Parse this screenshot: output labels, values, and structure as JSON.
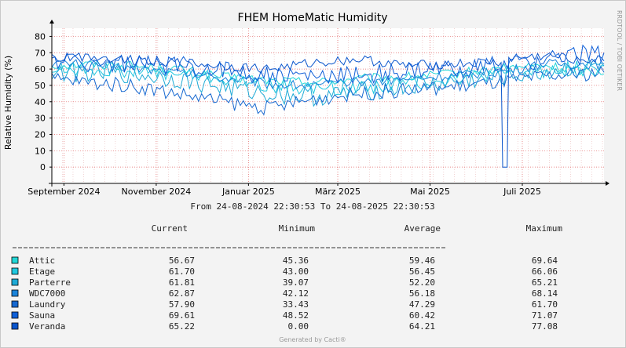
{
  "chart_data": {
    "type": "line",
    "title": "FHEM HomeMatic Humidity",
    "ylabel": "Relative Humidity (%)",
    "xlabel": "",
    "ylim": [
      -10,
      85
    ],
    "yticks": [
      0,
      10,
      20,
      30,
      40,
      50,
      60,
      70,
      80
    ],
    "x_range": [
      "2024-08-24",
      "2025-08-24"
    ],
    "xticks": [
      {
        "date": "2024-09-01",
        "label": "September 2024"
      },
      {
        "date": "2024-11-01",
        "label": "November 2024"
      },
      {
        "date": "2025-01-01",
        "label": "Januar 2025"
      },
      {
        "date": "2025-03-01",
        "label": "März 2025"
      },
      {
        "date": "2025-05-01",
        "label": "Mai 2025"
      },
      {
        "date": "2025-07-01",
        "label": "Juli 2025"
      }
    ],
    "grid": true,
    "watermark": "RRDTOOL / TOBI OETIKER",
    "time_range_text": "From 24-08-2024 22:30:53 To 24-08-2025 22:30:53",
    "legend_headers": [
      "Current",
      "Minimum",
      "Average",
      "Maximum"
    ],
    "series": [
      {
        "name": "Attic",
        "color": "#22d7d7",
        "current": "56.67",
        "minimum": "45.36",
        "average": "59.46",
        "maximum": "69.64",
        "x": [
          "2024-08-24",
          "2024-09-15",
          "2024-10-15",
          "2024-11-15",
          "2024-12-15",
          "2025-01-15",
          "2025-02-15",
          "2025-03-15",
          "2025-04-15",
          "2025-05-15",
          "2025-06-15",
          "2025-07-15",
          "2025-08-24"
        ],
        "values": [
          62,
          63,
          62,
          60,
          55,
          53,
          52,
          54,
          55,
          57,
          60,
          62,
          57
        ]
      },
      {
        "name": "Etage",
        "color": "#20c8e0",
        "current": "61.70",
        "minimum": "43.00",
        "average": "56.45",
        "maximum": "66.06",
        "x": [
          "2024-08-24",
          "2024-09-15",
          "2024-10-15",
          "2024-11-15",
          "2024-12-15",
          "2025-01-15",
          "2025-02-15",
          "2025-03-15",
          "2025-04-15",
          "2025-05-15",
          "2025-06-15",
          "2025-07-15",
          "2025-08-24"
        ],
        "values": [
          60,
          60,
          59,
          57,
          54,
          50,
          48,
          49,
          51,
          54,
          57,
          59,
          62
        ]
      },
      {
        "name": "Parterre",
        "color": "#1eaad6",
        "current": "61.81",
        "minimum": "39.07",
        "average": "52.20",
        "maximum": "65.21",
        "x": [
          "2024-08-24",
          "2024-09-15",
          "2024-10-15",
          "2024-11-15",
          "2024-12-15",
          "2025-01-15",
          "2025-02-15",
          "2025-03-15",
          "2025-04-15",
          "2025-05-15",
          "2025-06-15",
          "2025-07-15",
          "2025-08-24"
        ],
        "values": [
          58,
          58,
          57,
          54,
          49,
          45,
          43,
          46,
          49,
          52,
          55,
          58,
          62
        ]
      },
      {
        "name": "WDC7000",
        "color": "#1a84da",
        "current": "62.87",
        "minimum": "42.12",
        "average": "56.18",
        "maximum": "68.14",
        "x": [
          "2024-08-24",
          "2024-09-15",
          "2024-10-15",
          "2024-11-15",
          "2024-12-15",
          "2025-01-15",
          "2025-02-15",
          "2025-03-15",
          "2025-04-15",
          "2025-05-15",
          "2025-06-15",
          "2025-07-15",
          "2025-08-24"
        ],
        "values": [
          64,
          63,
          61,
          58,
          55,
          51,
          50,
          52,
          54,
          56,
          58,
          63,
          63
        ]
      },
      {
        "name": "Laundry",
        "color": "#1668d0",
        "current": "57.90",
        "minimum": "33.43",
        "average": "47.29",
        "maximum": "61.70",
        "x": [
          "2024-08-24",
          "2024-09-15",
          "2024-10-15",
          "2024-11-15",
          "2024-12-15",
          "2025-01-15",
          "2025-02-15",
          "2025-03-15",
          "2025-04-15",
          "2025-05-15",
          "2025-06-15",
          "2025-07-15",
          "2025-08-24"
        ],
        "values": [
          54,
          52,
          50,
          45,
          40,
          36,
          42,
          45,
          47,
          49,
          52,
          55,
          58
        ]
      },
      {
        "name": "Sauna",
        "color": "#1060d8",
        "current": "69.61",
        "minimum": "48.52",
        "average": "60.42",
        "maximum": "71.07",
        "x": [
          "2024-08-24",
          "2024-09-15",
          "2024-10-15",
          "2024-11-15",
          "2024-12-15",
          "2025-01-15",
          "2025-02-15",
          "2025-03-15",
          "2025-04-15",
          "2025-05-15",
          "2025-06-15",
          "2025-07-15",
          "2025-08-24"
        ],
        "values": [
          66,
          64,
          63,
          62,
          60,
          56,
          55,
          57,
          58,
          60,
          62,
          66,
          70
        ]
      },
      {
        "name": "Veranda",
        "color": "#0a55cc",
        "current": "65.22",
        "minimum": "0.00",
        "average": "64.21",
        "maximum": "77.08",
        "x": [
          "2024-08-24",
          "2024-09-15",
          "2024-10-15",
          "2024-11-15",
          "2024-12-15",
          "2025-01-15",
          "2025-02-15",
          "2025-03-15",
          "2025-04-15",
          "2025-05-15",
          "2025-06-10",
          "2025-06-17",
          "2025-06-18",
          "2025-06-21",
          "2025-06-22",
          "2025-07-15",
          "2025-08-24"
        ],
        "values": [
          66,
          68,
          66,
          64,
          62,
          60,
          64,
          66,
          62,
          63,
          64,
          64,
          0,
          0,
          66,
          68,
          65
        ]
      }
    ]
  },
  "footer": "Generated by Cacti®"
}
